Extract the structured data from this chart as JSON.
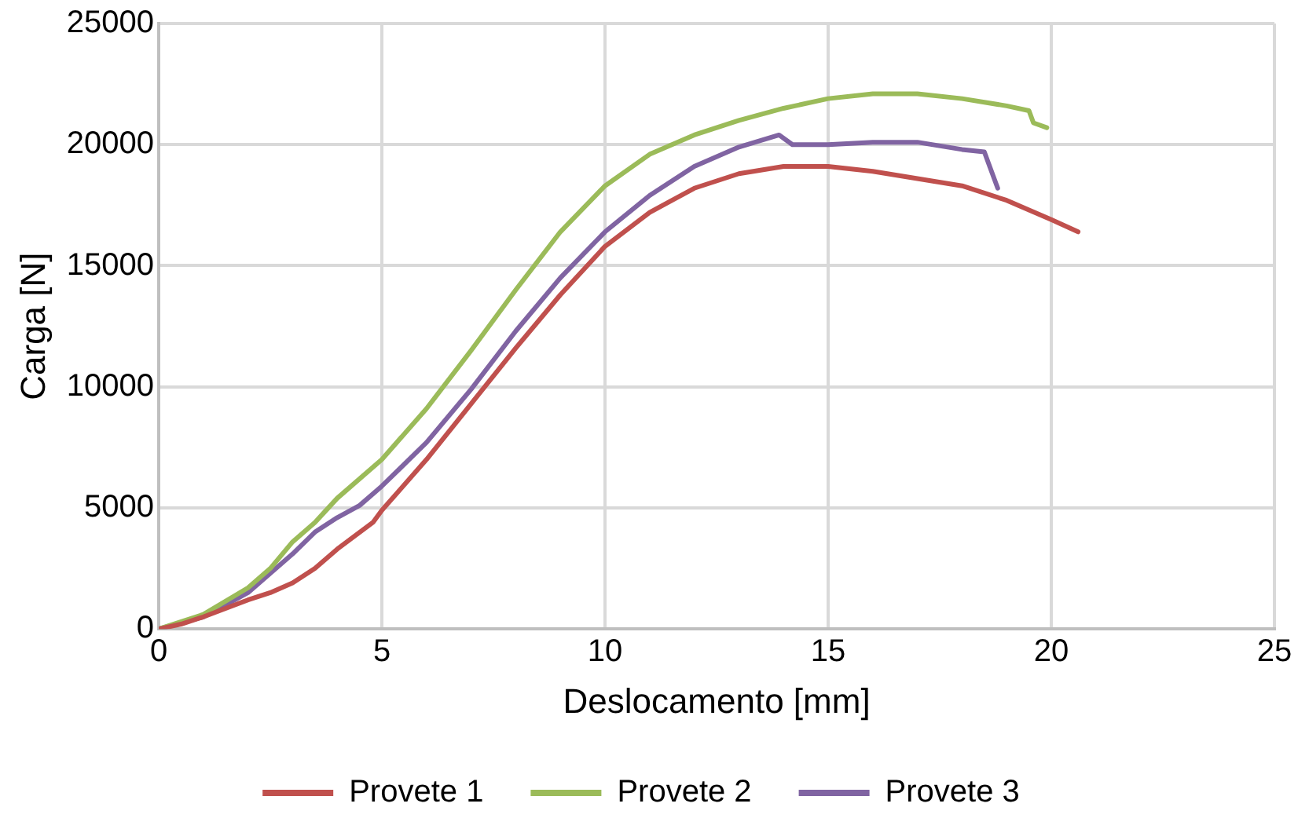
{
  "chart_data": {
    "type": "line",
    "xlabel": "Deslocamento [mm]",
    "ylabel": "Carga [N]",
    "xlim": [
      0,
      25
    ],
    "xticks": [
      0,
      5,
      10,
      15,
      20,
      25
    ],
    "ylim": [
      0,
      25000
    ],
    "yticks": [
      0,
      5000,
      10000,
      15000,
      20000,
      25000
    ],
    "grid": true,
    "legend": "bottom",
    "marker": "none",
    "line_style": "solid",
    "series": [
      {
        "name": "Provete 1",
        "color": "#c0504d",
        "x": [
          0,
          0.5,
          1,
          2,
          2.5,
          3,
          3.5,
          4,
          4.8,
          5,
          6,
          7,
          8,
          9,
          10,
          11,
          12,
          13,
          14,
          15,
          16,
          17,
          18,
          19,
          19.5,
          20,
          20.6
        ],
        "values": [
          0,
          200,
          500,
          1200,
          1500,
          1900,
          2500,
          3300,
          4400,
          4900,
          7000,
          9300,
          11600,
          13800,
          15800,
          17200,
          18200,
          18800,
          19100,
          19100,
          18900,
          18600,
          18300,
          17700,
          17300,
          16900,
          16400
        ]
      },
      {
        "name": "Provete 2",
        "color": "#9bbb59",
        "x": [
          0,
          1,
          2,
          2.5,
          3,
          3.5,
          3.7,
          4,
          5,
          6,
          7,
          8,
          9,
          10,
          11,
          12,
          13,
          14,
          15,
          16,
          17,
          18,
          19,
          19.5,
          19.6,
          19.9
        ],
        "values": [
          0,
          600,
          1700,
          2500,
          3600,
          4400,
          4800,
          5400,
          7000,
          9100,
          11500,
          14000,
          16400,
          18300,
          19600,
          20400,
          21000,
          21500,
          21900,
          22100,
          22100,
          21900,
          21600,
          21400,
          20900,
          20700
        ]
      },
      {
        "name": "Provete 3",
        "color": "#8064a2",
        "x": [
          0,
          1,
          2,
          3,
          3.5,
          4,
          4.5,
          5,
          6,
          7,
          8,
          9,
          10,
          11,
          12,
          13,
          13.9,
          14.2,
          15,
          16,
          17,
          18,
          18.5,
          18.6,
          18.8
        ],
        "values": [
          0,
          500,
          1500,
          3100,
          4000,
          4600,
          5100,
          5900,
          7700,
          9900,
          12300,
          14500,
          16400,
          17900,
          19100,
          19900,
          20400,
          20000,
          20000,
          20100,
          20100,
          19800,
          19700,
          19200,
          18200
        ]
      }
    ]
  }
}
